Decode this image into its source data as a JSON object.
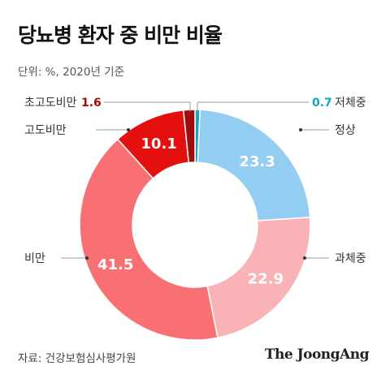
{
  "header": {
    "title": "당뇨병 환자 중 비만 비율",
    "subtitle": "단위: %, 2020년 기준"
  },
  "footer": {
    "source": "자료: 건강보험심사평가원",
    "brand": "The JoongAng"
  },
  "colors": {
    "정상": "#93cdf2",
    "과체중": "#f9b2b5",
    "비만": "#f87074",
    "고도비만": "#e60f0f",
    "초고도비만": "#a30b0b",
    "저체중": "#14a5c9",
    "초고도비만_label": "#a30b0b",
    "저체중_label": "#14a5c9"
  },
  "chart_data": {
    "type": "pie",
    "donut": true,
    "order": "clockwise from top",
    "slices": [
      {
        "label": "저체중",
        "value": 0.7,
        "value_label": "0.7"
      },
      {
        "label": "정상",
        "value": 23.3,
        "value_label": "23.3"
      },
      {
        "label": "과체중",
        "value": 22.9,
        "value_label": "22.9"
      },
      {
        "label": "비만",
        "value": 41.5,
        "value_label": "41.5"
      },
      {
        "label": "고도비만",
        "value": 10.1,
        "value_label": "10.1"
      },
      {
        "label": "초고도비만",
        "value": 1.6,
        "value_label": "1.6"
      }
    ]
  }
}
